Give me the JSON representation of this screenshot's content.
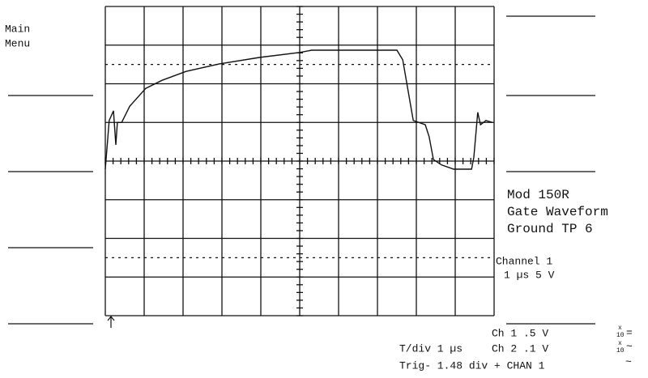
{
  "softkeys": {
    "main_menu": [
      "Main",
      "Menu"
    ]
  },
  "setup_label": [
    "Mod 150R",
    "Gate Waveform",
    "Ground TP 6"
  ],
  "channel_label": [
    "Channel 1",
    "1 µs 5 V"
  ],
  "status": {
    "ch1": "Ch 1  .5  V",
    "ch1_probe": [
      "x",
      "10"
    ],
    "ch1_coupling": "=",
    "timebase": "T/div  1 µs",
    "ch2": "Ch 2  .1  V",
    "ch2_probe": [
      "x",
      "10"
    ],
    "ch2_coupling": "~",
    "trigger": "Trig- 1.48 div + CHAN 1",
    "trigger_coupling": "~"
  },
  "trace": {
    "x": [
      0,
      0.1,
      0.21,
      0.27,
      0.31,
      0.42,
      0.63,
      1.04,
      1.46,
      2.08,
      2.92,
      3.96,
      5.0,
      5.31,
      7.5,
      7.65,
      7.92,
      8.23,
      8.33,
      8.44,
      8.65,
      8.96,
      9.42,
      9.48,
      9.58,
      9.65,
      9.79,
      9.96
    ],
    "y": [
      -0.21,
      1.05,
      1.3,
      0.42,
      1.0,
      1.0,
      1.42,
      1.88,
      2.09,
      2.32,
      2.51,
      2.68,
      2.81,
      2.87,
      2.87,
      2.62,
      1.05,
      0.94,
      0.63,
      0.04,
      -0.1,
      -0.21,
      -0.21,
      0.1,
      1.26,
      0.94,
      1.05,
      1.0
    ]
  }
}
